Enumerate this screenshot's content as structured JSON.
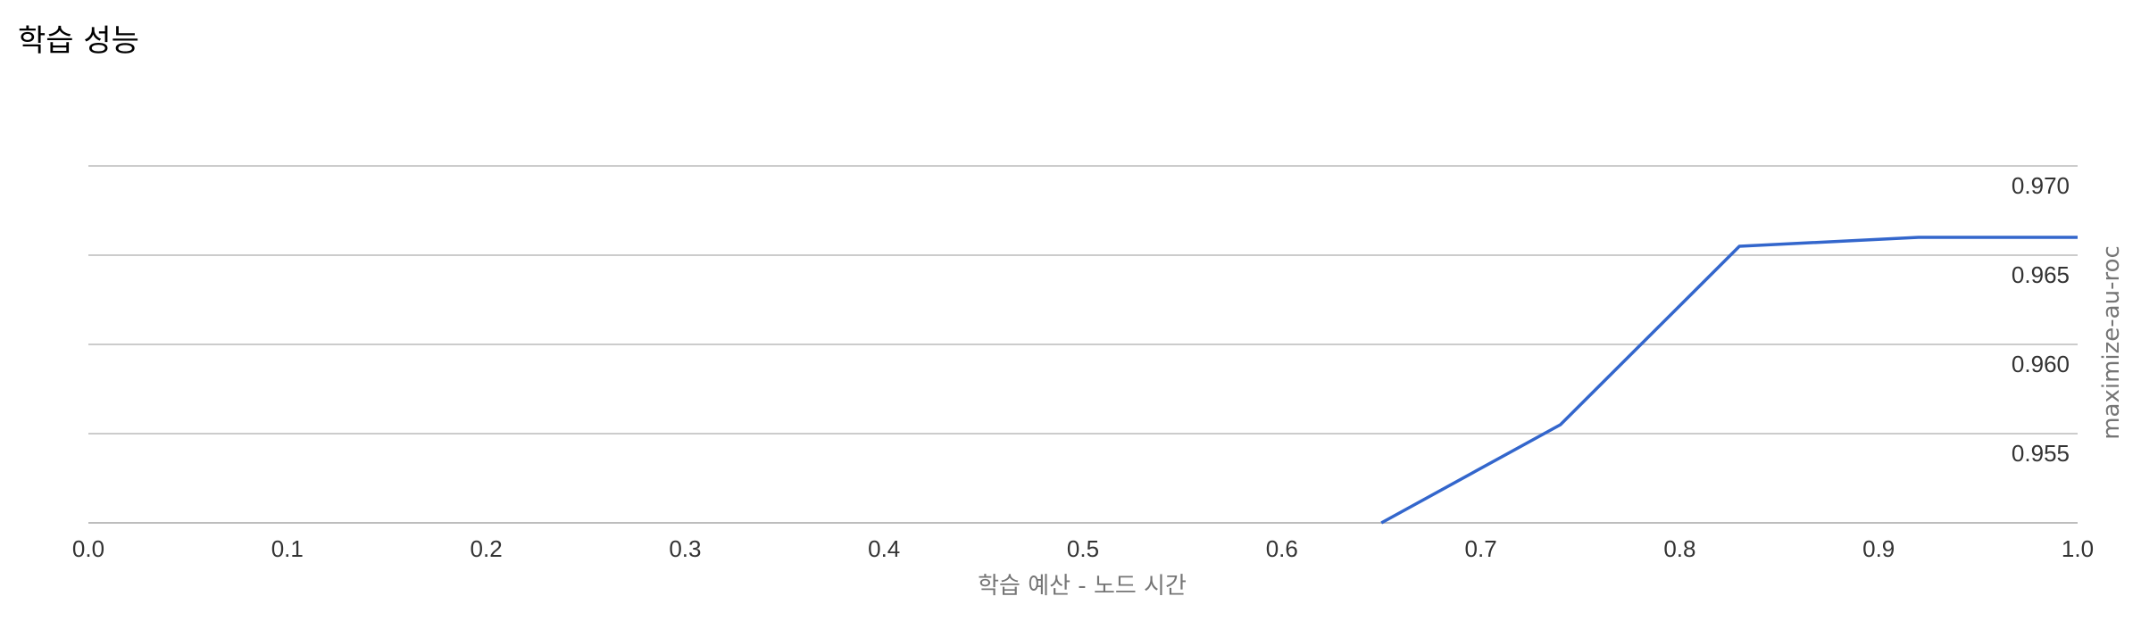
{
  "page": {
    "title": "학습 성능"
  },
  "chart_data": {
    "type": "line",
    "title": "",
    "xlabel": "학습 예산 - 노드 시간",
    "ylabel": "maximize-au-roc",
    "xlim": [
      0.0,
      1.0
    ],
    "ylim": [
      0.95,
      0.97
    ],
    "x_ticks": [
      "0.0",
      "0.1",
      "0.2",
      "0.3",
      "0.4",
      "0.5",
      "0.6",
      "0.7",
      "0.8",
      "0.9",
      "1.0"
    ],
    "y_ticks": [
      "0.955",
      "0.960",
      "0.965",
      "0.970"
    ],
    "y_axis_side": "right",
    "grid": true,
    "legend": "none",
    "series": [
      {
        "color": "#3366cc",
        "x": [
          0.65,
          0.74,
          0.83,
          0.92,
          1.0
        ],
        "y": [
          0.95,
          0.9555,
          0.9655,
          0.966,
          0.966
        ]
      }
    ]
  }
}
